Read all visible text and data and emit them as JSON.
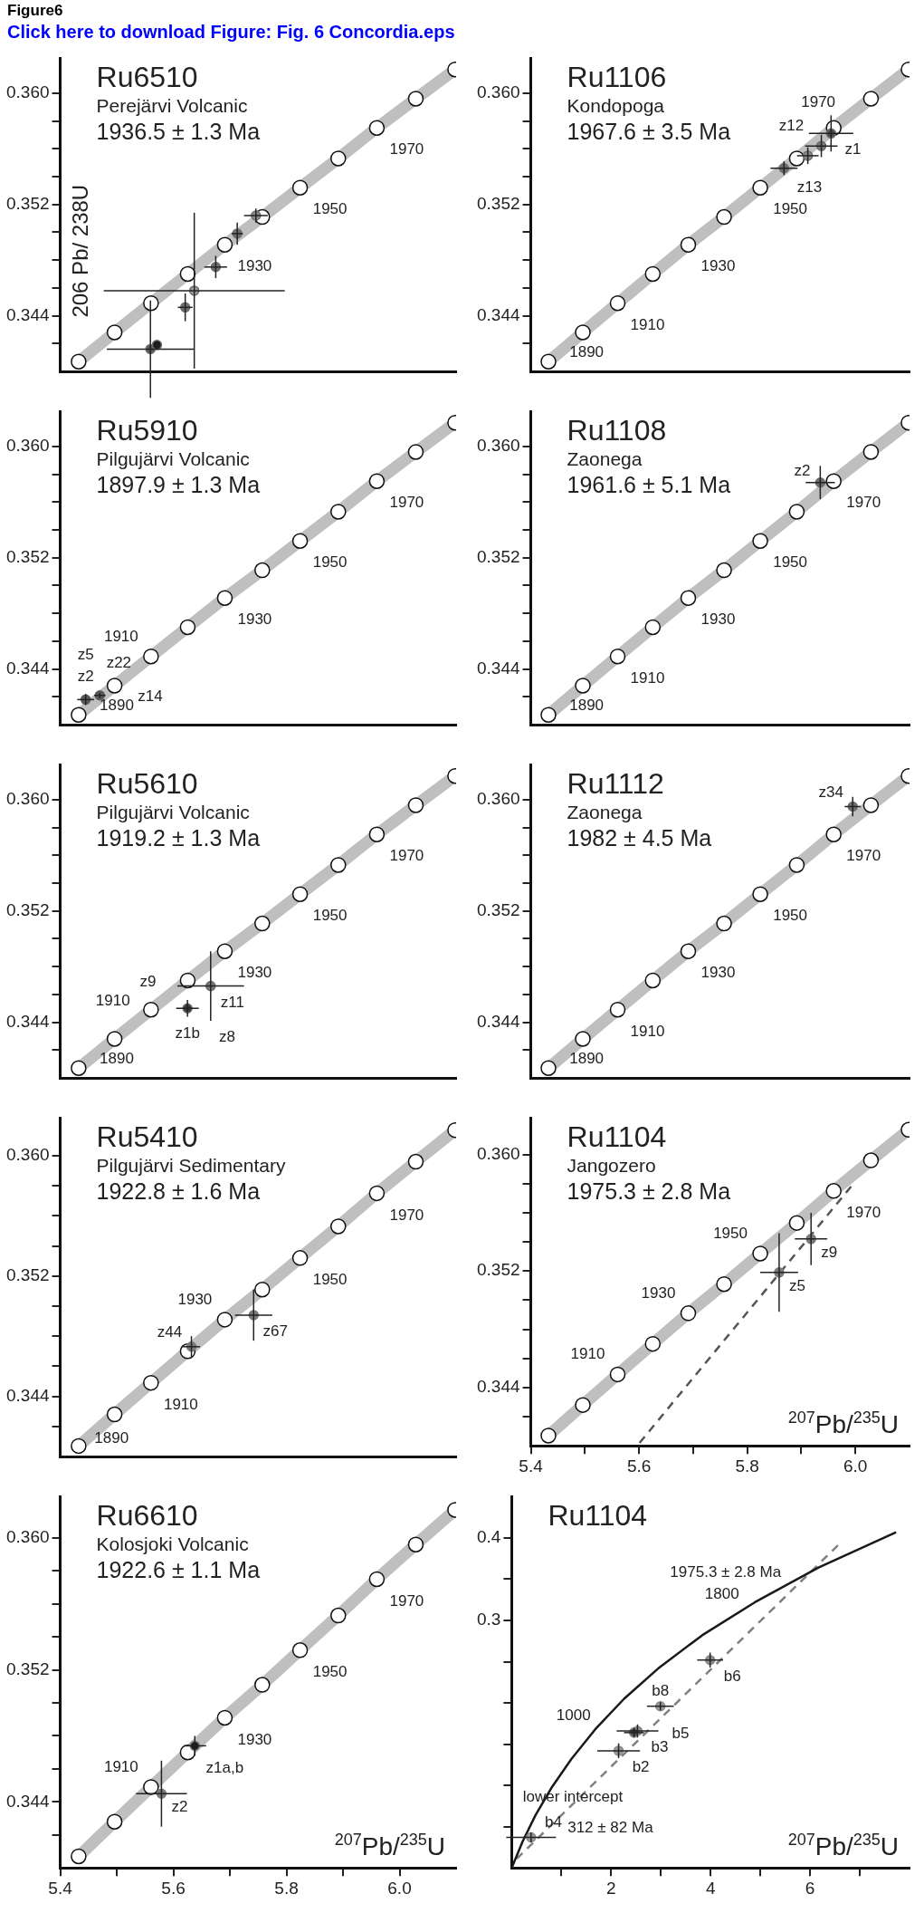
{
  "chart_data": [
    {
      "type": "other",
      "title": "Figure6",
      "subtitle": "Click here to download Figure: Fig. 6 Concordia.eps"
    },
    {
      "type": "scatter",
      "title": "Ru6510",
      "xlim": [
        5.4,
        6.1
      ],
      "subtitle": "Perejärvi Volcanic",
      "ylabel": "206 Pb/ 238U",
      "tick_labels": "y",
      "ylim": [
        0.34,
        0.3625
      ],
      "yticks": [
        {
          "value": 0.342,
          "label": null
        },
        0.344,
        {
          "value": 0.346,
          "label": null
        },
        {
          "value": 0.348,
          "label": null
        },
        {
          "value": 0.35,
          "label": null
        },
        0.352,
        {
          "value": 0.354,
          "label": null
        },
        {
          "value": 0.356,
          "label": null
        },
        {
          "value": 0.358,
          "label": null
        },
        {
          "value": 0.36,
          "label": "0.360"
        }
      ],
      "series": [
        {
          "type": "line",
          "marker": "circle",
          "color": "#bfbfbf",
          "x": [
            5.4325,
            5.4961,
            5.5605,
            5.6254,
            5.691,
            5.7572,
            5.8241,
            5.8916,
            5.9598,
            6.0287,
            6.0983
          ],
          "values": [
            0.3407,
            0.3428,
            0.3449,
            0.347,
            0.3491,
            0.3511,
            0.3532,
            0.3553,
            0.3575,
            0.3596,
            0.3617
          ]
        },
        {
          "type": "scatter",
          "color": "#6e6e6e",
          "colors": [
            "#5a5a5a",
            "#1a1a1a",
            "#9a9a9a",
            "#6e6e6e",
            "#6e6e6e",
            "#6e6e6e",
            "#8c8c8c"
          ],
          "x": [
            5.5595,
            5.571,
            5.637,
            5.621,
            5.675,
            5.713,
            5.746
          ],
          "values": [
            0.3416,
            0.3419,
            0.3458,
            0.3446,
            0.3475,
            0.3499,
            0.3512
          ],
          "xerrors": [
            0.077,
            0.005,
            0.16,
            0.013,
            0.02,
            0.01,
            0.021
          ],
          "errors": [
            0.0035,
            0.0002,
            0.0056,
            0.001,
            0.0008,
            0.0008,
            0.0005
          ]
        }
      ],
      "annotations": [
        "1936.5 ± 1.3 Ma",
        {
          "text": "1930",
          "x": 5.691,
          "y": 0.3491
        },
        {
          "text": "1950",
          "x": 5.8241,
          "y": 0.3532
        },
        {
          "text": "1970",
          "x": 5.9598,
          "y": 0.3575
        }
      ]
    },
    {
      "type": "scatter",
      "title": "Ru1106",
      "xlim": [
        5.4,
        6.1
      ],
      "subtitle": "Kondopoga",
      "tick_labels": "y",
      "ylim": [
        0.34,
        0.3625
      ],
      "yticks": [
        {
          "value": 0.342,
          "label": null
        },
        0.344,
        {
          "value": 0.346,
          "label": null
        },
        {
          "value": 0.348,
          "label": null
        },
        {
          "value": 0.35,
          "label": null
        },
        0.352,
        {
          "value": 0.354,
          "label": null
        },
        {
          "value": 0.356,
          "label": null
        },
        {
          "value": 0.358,
          "label": null
        },
        {
          "value": 0.36,
          "label": "0.360"
        }
      ],
      "series": [
        {
          "type": "line",
          "marker": "circle",
          "color": "#bfbfbf",
          "x": [
            5.4325,
            5.4961,
            5.5605,
            5.6254,
            5.691,
            5.7572,
            5.8241,
            5.8916,
            5.9598,
            6.0287,
            6.0983
          ],
          "values": [
            0.3407,
            0.3428,
            0.3449,
            0.347,
            0.3491,
            0.3511,
            0.3532,
            0.3553,
            0.3575,
            0.3596,
            0.3617
          ]
        },
        {
          "type": "scatter",
          "color": "#6e6e6e",
          "colors": [
            "#4d4d4d",
            "#7a7a7a",
            "#8c8c8c",
            "#6e6e6e"
          ],
          "x": [
            5.955,
            5.937,
            5.912,
            5.868
          ],
          "values": [
            0.3571,
            0.3562,
            0.3555,
            0.3546
          ],
          "xerrors": [
            0.041,
            0.03,
            0.02,
            0.025
          ],
          "errors": [
            0.0013,
            0.0008,
            0.0006,
            0.0005
          ]
        }
      ],
      "annotations": [
        "1967.6 ± 3.5 Ma",
        {
          "text": "z1",
          "x": 5.955,
          "y": 0.3571
        },
        {
          "text": "z12",
          "x": 5.937,
          "y": 0.3562
        },
        {
          "text": "z13",
          "x": 5.868,
          "y": 0.3546
        },
        {
          "text": "1890",
          "x": 5.4325,
          "y": 0.3407
        },
        {
          "text": "1910",
          "x": 5.5605,
          "y": 0.3449
        },
        {
          "text": "1930",
          "x": 5.691,
          "y": 0.3491
        },
        {
          "text": "1950",
          "x": 5.8241,
          "y": 0.3532
        },
        {
          "text": "1970",
          "x": 5.9598,
          "y": 0.3575
        }
      ]
    },
    {
      "type": "scatter",
      "title": "Ru5910",
      "xlim": [
        5.4,
        6.1
      ],
      "subtitle": "Pilgujärvi Volcanic",
      "tick_labels": "y",
      "ylim": [
        0.34,
        0.3625
      ],
      "yticks": [
        {
          "value": 0.342,
          "label": null
        },
        0.344,
        {
          "value": 0.346,
          "label": null
        },
        {
          "value": 0.348,
          "label": null
        },
        {
          "value": 0.35,
          "label": null
        },
        0.352,
        {
          "value": 0.354,
          "label": null
        },
        {
          "value": 0.356,
          "label": null
        },
        {
          "value": 0.358,
          "label": null
        },
        {
          "value": 0.36,
          "label": "0.360"
        }
      ],
      "series": [
        {
          "type": "line",
          "marker": "circle",
          "color": "#bfbfbf",
          "x": [
            5.4325,
            5.4961,
            5.5605,
            5.6254,
            5.691,
            5.7572,
            5.8241,
            5.8916,
            5.9598,
            6.0287,
            6.0983
          ],
          "values": [
            0.3407,
            0.3428,
            0.3449,
            0.347,
            0.3491,
            0.3511,
            0.3532,
            0.3553,
            0.3575,
            0.3596,
            0.3617
          ]
        },
        {
          "type": "scatter",
          "color": "#5a5a5a",
          "x": [
            5.445,
            5.47
          ],
          "values": [
            0.3418,
            0.3421
          ],
          "xerrors": [
            0.015,
            0.01
          ],
          "errors": [
            0.0004,
            0.0002
          ]
        }
      ],
      "annotations": [
        "1897.9 ± 1.3 Ma",
        {
          "text": "z2",
          "x": 5.445,
          "y": 0.3418
        },
        {
          "text": "z5",
          "x": 5.445,
          "y": 0.3418
        },
        {
          "text": "z14",
          "x": 5.47,
          "y": 0.3421
        },
        {
          "text": "z22",
          "x": 5.47,
          "y": 0.3421
        },
        {
          "text": "1890",
          "x": 5.4325,
          "y": 0.3407
        },
        {
          "text": "1910",
          "x": 5.5605,
          "y": 0.3449
        },
        {
          "text": "1930",
          "x": 5.691,
          "y": 0.3491
        },
        {
          "text": "1950",
          "x": 5.8241,
          "y": 0.3532
        },
        {
          "text": "1970",
          "x": 5.9598,
          "y": 0.3575
        }
      ]
    },
    {
      "type": "scatter",
      "title": "Ru1108",
      "xlim": [
        5.4,
        6.1
      ],
      "subtitle": "Zaonega",
      "tick_labels": "y",
      "ylim": [
        0.34,
        0.3625
      ],
      "yticks": [
        {
          "value": 0.342,
          "label": null
        },
        0.344,
        {
          "value": 0.346,
          "label": null
        },
        {
          "value": 0.348,
          "label": null
        },
        {
          "value": 0.35,
          "label": null
        },
        0.352,
        {
          "value": 0.354,
          "label": null
        },
        {
          "value": 0.356,
          "label": null
        },
        {
          "value": 0.358,
          "label": null
        },
        {
          "value": 0.36,
          "label": "0.360"
        }
      ],
      "series": [
        {
          "type": "line",
          "marker": "circle",
          "color": "#bfbfbf",
          "x": [
            5.4325,
            5.4961,
            5.5605,
            5.6254,
            5.691,
            5.7572,
            5.8241,
            5.8916,
            5.9598,
            6.0287,
            6.0983
          ],
          "values": [
            0.3407,
            0.3428,
            0.3449,
            0.347,
            0.3491,
            0.3511,
            0.3532,
            0.3553,
            0.3575,
            0.3596,
            0.3617
          ]
        },
        {
          "type": "scatter",
          "color": "#6e6e6e",
          "x": [
            5.935
          ],
          "values": [
            0.3574
          ],
          "xerrors": [
            0.027
          ],
          "errors": [
            0.0012
          ]
        }
      ],
      "annotations": [
        "1961.6 ± 5.1 Ma",
        {
          "text": "z2",
          "x": 5.935,
          "y": 0.3574
        },
        {
          "text": "1890",
          "x": 5.4325,
          "y": 0.3407
        },
        {
          "text": "1910",
          "x": 5.5605,
          "y": 0.3449
        },
        {
          "text": "1930",
          "x": 5.691,
          "y": 0.3491
        },
        {
          "text": "1950",
          "x": 5.8241,
          "y": 0.3532
        },
        {
          "text": "1970",
          "x": 5.9598,
          "y": 0.3575
        }
      ]
    },
    {
      "type": "scatter",
      "title": "Ru5610",
      "xlim": [
        5.4,
        6.1
      ],
      "subtitle": "Pilgujärvi Volcanic",
      "tick_labels": "y",
      "ylim": [
        0.34,
        0.3625
      ],
      "yticks": [
        {
          "value": 0.342,
          "label": null
        },
        0.344,
        {
          "value": 0.346,
          "label": null
        },
        {
          "value": 0.348,
          "label": null
        },
        {
          "value": 0.35,
          "label": null
        },
        0.352,
        {
          "value": 0.354,
          "label": null
        },
        {
          "value": 0.356,
          "label": null
        },
        {
          "value": 0.358,
          "label": null
        },
        {
          "value": 0.36,
          "label": "0.360"
        }
      ],
      "series": [
        {
          "type": "line",
          "marker": "circle",
          "color": "#bfbfbf",
          "x": [
            5.4325,
            5.4961,
            5.5605,
            5.6254,
            5.691,
            5.7572,
            5.8241,
            5.8916,
            5.9598,
            6.0287,
            6.0983
          ],
          "values": [
            0.3407,
            0.3428,
            0.3449,
            0.347,
            0.3491,
            0.3511,
            0.3532,
            0.3553,
            0.3575,
            0.3596,
            0.3617
          ]
        },
        {
          "type": "scatter",
          "color": "#6e6e6e",
          "colors": [
            "#7a7a7a",
            "#3a3a3a"
          ],
          "x": [
            5.666,
            5.625
          ],
          "values": [
            0.3466,
            0.345
          ],
          "xerrors": [
            0.059,
            0.02
          ],
          "errors": [
            0.0025,
            0.0006
          ]
        }
      ],
      "annotations": [
        "1919.2 ± 1.3 Ma",
        {
          "text": "z11",
          "x": 5.666,
          "y": 0.3466
        },
        {
          "text": "z1b",
          "x": 5.625,
          "y": 0.345
        },
        {
          "text": "z8",
          "x": 5.625,
          "y": 0.345
        },
        {
          "text": "z9",
          "x": 5.625,
          "y": 0.345
        },
        {
          "text": "1890",
          "x": 5.4325,
          "y": 0.3407
        },
        {
          "text": "1910",
          "x": 5.5605,
          "y": 0.3449
        },
        {
          "text": "1930",
          "x": 5.691,
          "y": 0.3491
        },
        {
          "text": "1950",
          "x": 5.8241,
          "y": 0.3532
        },
        {
          "text": "1970",
          "x": 5.9598,
          "y": 0.3575
        }
      ]
    },
    {
      "type": "scatter",
      "title": "Ru1112",
      "xlim": [
        5.4,
        6.1
      ],
      "subtitle": "Zaonega",
      "tick_labels": "y",
      "ylim": [
        0.34,
        0.3625
      ],
      "yticks": [
        {
          "value": 0.342,
          "label": null
        },
        0.344,
        {
          "value": 0.346,
          "label": null
        },
        {
          "value": 0.348,
          "label": null
        },
        {
          "value": 0.35,
          "label": null
        },
        0.352,
        {
          "value": 0.354,
          "label": null
        },
        {
          "value": 0.356,
          "label": null
        },
        {
          "value": 0.358,
          "label": null
        },
        {
          "value": 0.36,
          "label": "0.360"
        }
      ],
      "series": [
        {
          "type": "line",
          "marker": "circle",
          "color": "#bfbfbf",
          "x": [
            5.4325,
            5.4961,
            5.5605,
            5.6254,
            5.691,
            5.7572,
            5.8241,
            5.8916,
            5.9598,
            6.0287,
            6.0983
          ],
          "values": [
            0.3407,
            0.3428,
            0.3449,
            0.347,
            0.3491,
            0.3511,
            0.3532,
            0.3553,
            0.3575,
            0.3596,
            0.3617
          ]
        },
        {
          "type": "scatter",
          "color": "#6e6e6e",
          "x": [
            5.995
          ],
          "values": [
            0.3595
          ],
          "xerrors": [
            0.015
          ],
          "errors": [
            0.0007
          ]
        }
      ],
      "annotations": [
        "1982 ± 4.5 Ma",
        {
          "text": "z34",
          "x": 5.995,
          "y": 0.3595
        },
        {
          "text": "1890",
          "x": 5.4325,
          "y": 0.3407
        },
        {
          "text": "1910",
          "x": 5.5605,
          "y": 0.3449
        },
        {
          "text": "1930",
          "x": 5.691,
          "y": 0.3491
        },
        {
          "text": "1950",
          "x": 5.8241,
          "y": 0.3532
        },
        {
          "text": "1970",
          "x": 5.9598,
          "y": 0.3575
        }
      ]
    },
    {
      "type": "scatter",
      "title": "Ru5410",
      "xlim": [
        5.4,
        6.1
      ],
      "subtitle": "Pilgujärvi Sedimentary",
      "tick_labels": "y",
      "ylim": [
        0.34,
        0.3625
      ],
      "yticks": [
        {
          "value": 0.342,
          "label": null
        },
        0.344,
        {
          "value": 0.346,
          "label": null
        },
        {
          "value": 0.348,
          "label": null
        },
        {
          "value": 0.35,
          "label": null
        },
        0.352,
        {
          "value": 0.354,
          "label": null
        },
        {
          "value": 0.356,
          "label": null
        },
        {
          "value": 0.358,
          "label": null
        },
        {
          "value": 0.36,
          "label": "0.360"
        }
      ],
      "series": [
        {
          "type": "line",
          "marker": "circle",
          "color": "#bfbfbf",
          "x": [
            5.4325,
            5.4961,
            5.5605,
            5.6254,
            5.691,
            5.7572,
            5.8241,
            5.8916,
            5.9598,
            6.0287,
            6.0983
          ],
          "values": [
            0.3407,
            0.3428,
            0.3449,
            0.347,
            0.3491,
            0.3511,
            0.3532,
            0.3553,
            0.3575,
            0.3596,
            0.3617
          ]
        },
        {
          "type": "scatter",
          "color": "#7a7a7a",
          "x": [
            5.742,
            5.632
          ],
          "values": [
            0.3494,
            0.3473
          ],
          "xerrors": [
            0.033,
            0.015
          ],
          "errors": [
            0.0017,
            0.0007
          ]
        }
      ],
      "annotations": [
        "1922.8 ± 1.6 Ma",
        {
          "text": "z67",
          "x": 5.742,
          "y": 0.3494
        },
        {
          "text": "z44",
          "x": 5.632,
          "y": 0.3473
        },
        {
          "text": "1890",
          "x": 5.4325,
          "y": 0.3407
        },
        {
          "text": "1910",
          "x": 5.5605,
          "y": 0.3449
        },
        {
          "text": "1930",
          "x": 5.691,
          "y": 0.3491
        },
        {
          "text": "1950",
          "x": 5.8241,
          "y": 0.3532
        },
        {
          "text": "1970",
          "x": 5.9598,
          "y": 0.3575
        }
      ]
    },
    {
      "type": "scatter",
      "title": "Ru1104",
      "subtitle": "Jangozero",
      "xlabel": "$^{207}$Pb/$^{235}$U",
      "xlim": [
        5.4,
        6.1
      ],
      "ylim": [
        0.34,
        0.3625
      ],
      "xticks": [
        5.4,
        {
          "value": 5.5,
          "label": null
        },
        5.6,
        {
          "value": 5.7,
          "label": null
        },
        5.8,
        {
          "value": 5.9,
          "label": null
        },
        {
          "value": 6,
          "label": "6.0"
        }
      ],
      "yticks": [
        {
          "value": 0.342,
          "label": null
        },
        0.344,
        {
          "value": 0.346,
          "label": null
        },
        {
          "value": 0.348,
          "label": null
        },
        {
          "value": 0.35,
          "label": null
        },
        0.352,
        {
          "value": 0.354,
          "label": null
        },
        {
          "value": 0.356,
          "label": null
        },
        {
          "value": 0.358,
          "label": null
        },
        {
          "value": 0.36,
          "label": "0.360"
        }
      ],
      "series": [
        {
          "type": "line",
          "marker": "circle",
          "color": "#bfbfbf",
          "x": [
            5.4325,
            5.4961,
            5.5605,
            5.6254,
            5.691,
            5.7572,
            5.8241,
            5.8916,
            5.9598,
            6.0287,
            6.0983
          ],
          "values": [
            0.3407,
            0.3428,
            0.3449,
            0.347,
            0.3491,
            0.3511,
            0.3532,
            0.3553,
            0.3575,
            0.3596,
            0.3617
          ]
        },
        {
          "type": "line",
          "line_style": "dashed",
          "color": "#555555",
          "x": [
            5.601,
            5.992
          ],
          "values": [
            0.3402,
            0.3578
          ]
        },
        {
          "type": "scatter",
          "color": "#7a7a7a",
          "x": [
            5.918,
            5.859
          ],
          "values": [
            0.3542,
            0.3519
          ],
          "xerrors": [
            0.03,
            0.035
          ],
          "errors": [
            0.0018,
            0.0027
          ]
        }
      ],
      "annotations": [
        "1975.3 ± 2.8 Ma",
        {
          "text": "z9",
          "x": 5.918,
          "y": 0.3542
        },
        {
          "text": "z5",
          "x": 5.859,
          "y": 0.3519
        },
        {
          "text": "1910",
          "x": 5.5605,
          "y": 0.3449
        },
        {
          "text": "1930",
          "x": 5.691,
          "y": 0.3491
        },
        {
          "text": "1950",
          "x": 5.8241,
          "y": 0.3532
        },
        {
          "text": "1970",
          "x": 5.9598,
          "y": 0.3575
        }
      ]
    },
    {
      "type": "scatter",
      "title": "Ru6610",
      "subtitle": "Kolosjoki Volcanic",
      "xlabel": "$^{207}$Pb/$^{235}$U",
      "xlim": [
        5.4,
        6.1
      ],
      "ylim": [
        0.34,
        0.3625
      ],
      "xticks": [
        5.4,
        {
          "value": 5.5,
          "label": null
        },
        5.6,
        {
          "value": 5.7,
          "label": null
        },
        5.8,
        {
          "value": 5.9,
          "label": null
        },
        {
          "value": 6,
          "label": "6.0"
        }
      ],
      "yticks": [
        {
          "value": 0.342,
          "label": null
        },
        0.344,
        {
          "value": 0.346,
          "label": null
        },
        {
          "value": 0.348,
          "label": null
        },
        {
          "value": 0.35,
          "label": null
        },
        0.352,
        {
          "value": 0.354,
          "label": null
        },
        {
          "value": 0.356,
          "label": null
        },
        {
          "value": 0.358,
          "label": null
        },
        {
          "value": 0.36,
          "label": "0.360"
        }
      ],
      "series": [
        {
          "type": "line",
          "marker": "circle",
          "color": "#bfbfbf",
          "x": [
            5.4325,
            5.4961,
            5.5605,
            5.6254,
            5.691,
            5.7572,
            5.8241,
            5.8916,
            5.9598,
            6.0287,
            6.0983
          ],
          "values": [
            0.3407,
            0.3428,
            0.3449,
            0.347,
            0.3491,
            0.3511,
            0.3532,
            0.3553,
            0.3575,
            0.3596,
            0.3617
          ]
        },
        {
          "type": "scatter",
          "color": "#7a7a7a",
          "colors": [
            "#1a1a1a",
            "#7a7a7a"
          ],
          "x": [
            5.638,
            5.579
          ],
          "values": [
            0.3474,
            0.3445
          ],
          "xerrors": [
            0.02,
            0.045
          ],
          "errors": [
            0.0006,
            0.002
          ]
        }
      ],
      "annotations": [
        "1922.6 ± 1.1 Ma",
        {
          "text": "z1a,b",
          "x": 5.638,
          "y": 0.3474
        },
        {
          "text": "z2",
          "x": 5.579,
          "y": 0.3445
        },
        {
          "text": "1910",
          "x": 5.5605,
          "y": 0.3449
        },
        {
          "text": "1930",
          "x": 5.691,
          "y": 0.3491
        },
        {
          "text": "1950",
          "x": 5.8241,
          "y": 0.3532
        },
        {
          "text": "1970",
          "x": 5.9598,
          "y": 0.3575
        }
      ]
    },
    {
      "type": "scatter",
      "title": "Ru1104",
      "xlabel": "$^{207}$Pb/$^{235}$U",
      "xlim": [
        0,
        8
      ],
      "ylim": [
        0,
        0.45
      ],
      "xticks": [
        {
          "value": 1,
          "label": null
        },
        2,
        {
          "value": 3,
          "label": null
        },
        4,
        {
          "value": 5,
          "label": null
        },
        6,
        {
          "value": 7,
          "label": null
        }
      ],
      "yticks": [
        {
          "value": 0.05,
          "label": null
        },
        {
          "value": 0.1,
          "label": null
        },
        {
          "value": 0.15,
          "label": null
        },
        {
          "value": 0.2,
          "label": null
        },
        {
          "value": 0.25,
          "label": null
        },
        0.3,
        {
          "value": 0.35,
          "label": null
        },
        0.4
      ],
      "series": [
        {
          "type": "line",
          "color": "#1a1a1a",
          "x": [
            0,
            0.22,
            0.48,
            0.81,
            1.2,
            1.68,
            2.26,
            2.97,
            3.83,
            4.89,
            6.17,
            7.73
          ],
          "values": [
            0,
            0.032,
            0.064,
            0.098,
            0.132,
            0.168,
            0.205,
            0.243,
            0.282,
            0.322,
            0.364,
            0.407
          ]
        },
        {
          "type": "line",
          "line_style": "dashed",
          "color": "#808080",
          "x": [
            0.1,
            6.56
          ],
          "values": [
            0.011,
            0.391
          ]
        },
        {
          "type": "scatter",
          "color": "#8c8c8c",
          "colors": [
            "#9a9a9a",
            "#9a9a9a",
            "#8c8c8c",
            "#4d4d4d",
            "#9a9a9a",
            "#8c8c8c"
          ],
          "x": [
            0.39,
            2.15,
            2.53,
            2.46,
            2.99,
            3.99
          ],
          "values": [
            0.037,
            0.142,
            0.166,
            0.164,
            0.196,
            0.252
          ],
          "xerrors": [
            0.5,
            0.43,
            0.42,
            0.2,
            0.27,
            0.26
          ],
          "errors": [
            0.006,
            0.009,
            0.008,
            0.006,
            0.005,
            0.009
          ]
        }
      ],
      "annotations": [
        {
          "text": "1975.3 ± 2.8 Ma",
          "x": 6.0,
          "y": 0.359
        },
        {
          "text": "1800",
          "x": 4.89,
          "y": 0.322
        },
        {
          "text": "1000",
          "x": 1.68,
          "y": 0.168
        },
        {
          "text": "312 ± 82 Ma",
          "x": 0.36,
          "y": 0.05
        },
        {
          "text": "lower intercept",
          "x": 0.36,
          "y": 0.05
        },
        {
          "text": "b4",
          "x": 0.39,
          "y": 0.037
        },
        {
          "text": "b2",
          "x": 2.15,
          "y": 0.142
        },
        {
          "text": "b3",
          "x": 2.53,
          "y": 0.166
        },
        {
          "text": "b5",
          "x": 2.46,
          "y": 0.164
        },
        {
          "text": "b8",
          "x": 2.99,
          "y": 0.196
        },
        {
          "text": "b6",
          "x": 3.99,
          "y": 0.252
        }
      ]
    }
  ]
}
